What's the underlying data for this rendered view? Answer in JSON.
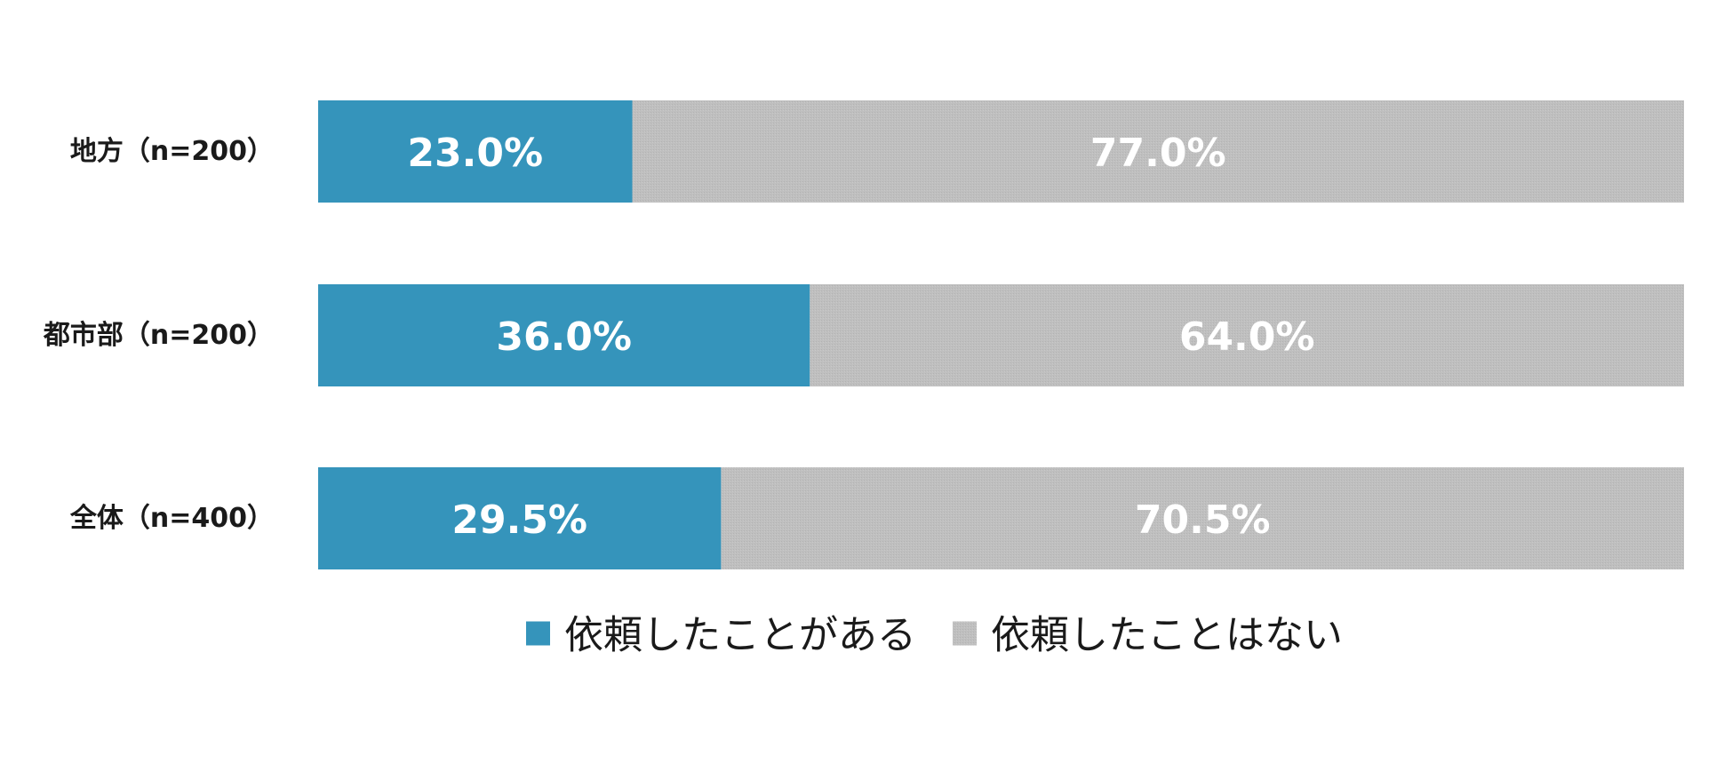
{
  "chart_data": {
    "type": "bar",
    "orientation": "horizontal",
    "stacked": true,
    "categories": [
      "地方（n=200）",
      "都市部（n=200）",
      "全体（n=400）"
    ],
    "series": [
      {
        "name": "依頼したことがある",
        "values": [
          23.0,
          36.0,
          29.5
        ],
        "labels": [
          "23.0%",
          "36.0%",
          "29.5%"
        ],
        "color": "#3594bb"
      },
      {
        "name": "依頼したことはない",
        "values": [
          77.0,
          64.0,
          70.5
        ],
        "labels": [
          "77.0%",
          "64.0%",
          "70.5%"
        ],
        "color": "#bfbfbf"
      }
    ],
    "xlim": [
      0,
      100
    ],
    "grid": false,
    "legend_position": "bottom"
  }
}
